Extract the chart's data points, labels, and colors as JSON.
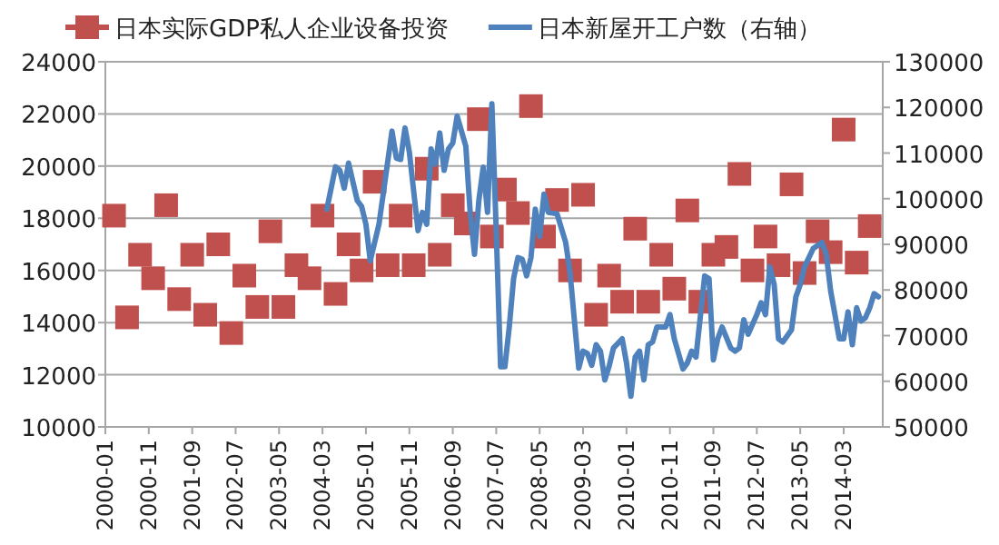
{
  "chart_data": {
    "type": "scatter",
    "xlim": [
      "2000-01",
      "2014-12"
    ],
    "xticks": [
      "2000-01",
      "2000-11",
      "2001-09",
      "2002-07",
      "2003-05",
      "2004-03",
      "2005-01",
      "2005-11",
      "2006-09",
      "2007-07",
      "2008-05",
      "2009-03",
      "2010-01",
      "2010-11",
      "2011-09",
      "2012-07",
      "2013-05",
      "2014-03"
    ],
    "ylim": [
      10000,
      24000
    ],
    "yticks": [
      10000,
      12000,
      14000,
      16000,
      18000,
      20000,
      22000,
      24000
    ],
    "y2lim": [
      50000,
      130000
    ],
    "y2ticks": [
      50000,
      60000,
      70000,
      80000,
      90000,
      100000,
      110000,
      120000,
      130000
    ],
    "grid": "y",
    "legend": "top",
    "series": [
      {
        "name": "日本实际GDP私人企业设备投资",
        "marker": "square",
        "color": "#c0504d",
        "x": [
          "2000-03",
          "2000-06",
          "2000-09",
          "2000-12",
          "2001-03",
          "2001-06",
          "2001-09",
          "2001-12",
          "2002-03",
          "2002-06",
          "2002-09",
          "2002-12",
          "2003-03",
          "2003-06",
          "2003-09",
          "2003-12",
          "2004-03",
          "2004-06",
          "2004-09",
          "2004-12",
          "2005-03",
          "2005-06",
          "2005-09",
          "2005-12",
          "2006-03",
          "2006-06",
          "2006-09",
          "2006-12",
          "2007-03",
          "2007-06",
          "2007-09",
          "2007-12",
          "2008-03",
          "2008-06",
          "2008-09",
          "2008-12",
          "2009-03",
          "2009-06",
          "2009-09",
          "2009-12",
          "2010-03",
          "2010-06",
          "2010-09",
          "2010-12",
          "2011-03",
          "2011-06",
          "2011-09",
          "2011-12",
          "2012-03",
          "2012-06",
          "2012-09",
          "2012-12",
          "2013-03",
          "2013-06",
          "2013-09",
          "2013-12",
          "2014-03",
          "2014-06",
          "2014-09"
        ],
        "values": [
          18100,
          14200,
          16600,
          15700,
          18500,
          14900,
          16600,
          14300,
          17000,
          13600,
          15800,
          14600,
          17500,
          14600,
          16200,
          15700,
          18100,
          15100,
          17000,
          16000,
          19400,
          16200,
          18100,
          16200,
          19900,
          16600,
          18500,
          17800,
          21800,
          17300,
          19100,
          18200,
          22300,
          17300,
          18700,
          16000,
          18900,
          14300,
          15800,
          14800,
          17600,
          14800,
          16600,
          15300,
          18300,
          14800,
          16600,
          16900,
          19700,
          16000,
          17300,
          16200,
          19300,
          15900,
          17500,
          16700,
          21400,
          16300,
          17700
        ]
      },
      {
        "name": "日本新屋开工户数（右轴）",
        "type": "line",
        "axis": "y2",
        "color": "#4f81bd",
        "x": [
          "2004-04",
          "2004-06",
          "2004-07",
          "2004-08",
          "2004-09",
          "2004-11",
          "2004-12",
          "2005-01",
          "2005-02",
          "2005-04",
          "2005-07",
          "2005-08",
          "2005-09",
          "2005-10",
          "2005-11",
          "2006-01",
          "2006-02",
          "2006-03",
          "2006-04",
          "2006-05",
          "2006-06",
          "2006-07",
          "2006-08",
          "2006-09",
          "2006-10",
          "2006-12",
          "2007-01",
          "2007-02",
          "2007-03",
          "2007-04",
          "2007-05",
          "2007-06",
          "2007-07",
          "2007-08",
          "2007-09",
          "2007-10",
          "2007-11",
          "2007-12",
          "2008-01",
          "2008-02",
          "2008-03",
          "2008-04",
          "2008-05",
          "2008-06",
          "2008-07",
          "2008-09",
          "2008-11",
          "2008-12",
          "2009-02",
          "2009-03",
          "2009-04",
          "2009-05",
          "2009-06",
          "2009-07",
          "2009-08",
          "2009-09",
          "2009-10",
          "2009-12",
          "2010-01",
          "2010-02",
          "2010-03",
          "2010-04",
          "2010-05",
          "2010-06",
          "2010-07",
          "2010-08",
          "2010-10",
          "2010-11",
          "2010-12",
          "2011-02",
          "2011-03",
          "2011-04",
          "2011-05",
          "2011-07",
          "2011-08",
          "2011-09",
          "2011-10",
          "2011-11",
          "2012-01",
          "2012-02",
          "2012-03",
          "2012-04",
          "2012-05",
          "2012-07",
          "2012-08",
          "2012-09",
          "2012-10",
          "2012-11",
          "2012-12",
          "2013-01",
          "2013-03",
          "2013-04",
          "2013-05",
          "2013-06",
          "2013-08",
          "2013-10",
          "2013-11",
          "2013-12",
          "2014-02",
          "2014-03",
          "2014-04",
          "2014-05",
          "2014-06",
          "2014-07",
          "2014-08",
          "2014-09",
          "2014-10",
          "2014-11"
        ],
        "values": [
          97700,
          107000,
          106200,
          102300,
          107800,
          99600,
          98300,
          94400,
          86400,
          94400,
          114800,
          108900,
          108600,
          115500,
          110200,
          93000,
          97000,
          94400,
          110900,
          107600,
          114400,
          106200,
          110900,
          112200,
          118100,
          111500,
          97000,
          87800,
          99600,
          106900,
          97000,
          120800,
          93000,
          63200,
          63200,
          71900,
          82500,
          87100,
          86700,
          83100,
          87100,
          97700,
          91700,
          101000,
          97000,
          96700,
          90400,
          83800,
          62900,
          66600,
          66100,
          63500,
          68000,
          66600,
          60300,
          63300,
          67300,
          69300,
          64000,
          56700,
          65300,
          66600,
          60300,
          68000,
          68600,
          71900,
          71900,
          74600,
          69300,
          62700,
          64000,
          66600,
          65300,
          83100,
          82500,
          64700,
          69300,
          71900,
          67300,
          66600,
          67300,
          73500,
          70300,
          74600,
          77200,
          74600,
          85100,
          81200,
          69300,
          68600,
          71300,
          78500,
          81200,
          85100,
          89100,
          90400,
          87800,
          79800,
          69300,
          69300,
          75200,
          68000,
          76100,
          73200,
          73900,
          76100,
          79200,
          78500
        ]
      }
    ]
  }
}
